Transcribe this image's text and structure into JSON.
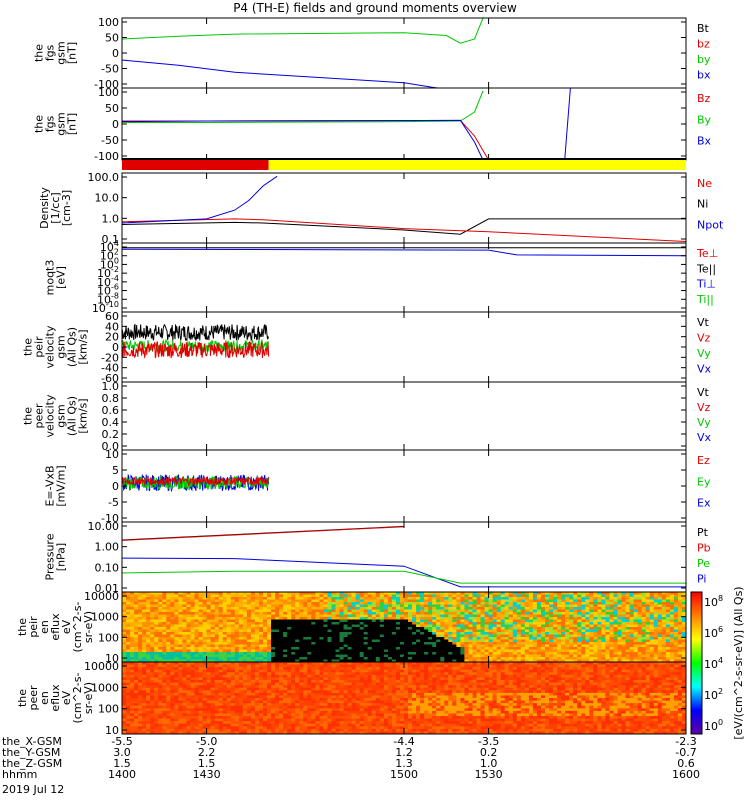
{
  "title": "P4 (TH-E) fields and ground moments overview",
  "colors": {
    "black": "#000000",
    "red": "#e00000",
    "green": "#00c800",
    "blue": "#0000e0",
    "yellow": "#ffff00"
  },
  "chart_data": [
    {
      "type": "line",
      "ylabel": [
        "the",
        "fgs",
        "gsm",
        "[nT]"
      ],
      "yticks": [
        "100",
        "50",
        "0",
        "-50",
        "-100"
      ],
      "ylim": [
        -100,
        100
      ],
      "legend": [
        {
          "name": "Bt",
          "color": "#000000"
        },
        {
          "name": "bz",
          "color": "#e00000"
        },
        {
          "name": "by",
          "color": "#00c800"
        },
        {
          "name": "bx",
          "color": "#0000e0"
        }
      ],
      "series": [
        {
          "name": "by",
          "x": [
            1400,
            1420,
            1440,
            1500,
            1515,
            1520,
            1525,
            1528
          ],
          "y": [
            40,
            48,
            54,
            58,
            50,
            28,
            40,
            100
          ]
        },
        {
          "name": "bx",
          "x": [
            1400,
            1420,
            1440,
            1500,
            1510,
            1512
          ],
          "y": [
            -20,
            -35,
            -55,
            -85,
            -98,
            -100
          ]
        }
      ]
    },
    {
      "type": "line",
      "ylabel": [
        "the",
        "fgs",
        "gsm",
        "[nT]"
      ],
      "yticks": [
        "100",
        "50",
        "0",
        "-50",
        "-100"
      ],
      "ylim": [
        -120,
        120
      ],
      "legend": [
        {
          "name": "Bz",
          "color": "#e00000"
        },
        {
          "name": "By",
          "color": "#00c800"
        },
        {
          "name": "Bx",
          "color": "#0000e0"
        }
      ],
      "series": [
        {
          "name": "By",
          "x": [
            1400,
            1430,
            1500,
            1520,
            1525,
            1528
          ],
          "y": [
            5,
            5,
            8,
            10,
            40,
            110
          ]
        },
        {
          "name": "Bz",
          "x": [
            1400,
            1430,
            1520,
            1525,
            1530
          ],
          "y": [
            10,
            10,
            12,
            -40,
            -120
          ]
        },
        {
          "name": "Bx",
          "x": [
            1400,
            1430,
            1520,
            1525,
            1528,
            1557,
            1559
          ],
          "y": [
            8,
            10,
            12,
            -60,
            -120,
            -120,
            120
          ]
        }
      ]
    },
    {
      "type": "bar_strip",
      "x": [
        1400,
        1452,
        1600
      ],
      "values": [
        "red",
        "yellow"
      ]
    },
    {
      "type": "line",
      "ylabel": [
        "Density",
        "[1/cc]",
        "[cm-3]"
      ],
      "yticks": [
        "100.0",
        "10.0",
        "1.0",
        "0.1"
      ],
      "ylim": [
        0.05,
        300
      ],
      "scale": "log",
      "legend": [
        {
          "name": "Ne",
          "color": "#e00000"
        },
        {
          "name": "Ni",
          "color": "#000000"
        },
        {
          "name": "Npot",
          "color": "#0000e0"
        }
      ],
      "series": [
        {
          "name": "Ni",
          "x": [
            1400,
            1440,
            1450,
            1500,
            1520,
            1530,
            1600
          ],
          "y": [
            0.5,
            0.65,
            0.6,
            0.25,
            0.15,
            1.0,
            1.0
          ]
        },
        {
          "name": "Ne",
          "x": [
            1400,
            1440,
            1450,
            1500,
            1530,
            1600
          ],
          "y": [
            0.7,
            1.0,
            0.9,
            0.3,
            0.2,
            0.06
          ]
        },
        {
          "name": "Npot",
          "x": [
            1400,
            1430,
            1440,
            1445,
            1450,
            1455
          ],
          "y": [
            0.6,
            1.0,
            3,
            10,
            60,
            200
          ]
        }
      ]
    },
    {
      "type": "line",
      "ylabel": [
        "moqt3",
        "[eV]"
      ],
      "yticks": [
        "10^4",
        "10^2",
        "10^0",
        "10^-2",
        "10^-4",
        "10^-6",
        "10^-8",
        "10^-10"
      ],
      "ylim": [
        -10,
        4.5
      ],
      "scale": "log",
      "legend": [
        {
          "name": "Te⊥",
          "color": "#e00000"
        },
        {
          "name": "Te||",
          "color": "#000000"
        },
        {
          "name": "Ti⊥",
          "color": "#0000e0"
        },
        {
          "name": "Ti||",
          "color": "#00c800"
        }
      ],
      "series": [
        {
          "name": "Te||",
          "x": [
            1400,
            1600
          ],
          "y": [
            3.5,
            3.5
          ]
        },
        {
          "name": "Ti⊥",
          "x": [
            1400,
            1530,
            1540,
            1600
          ],
          "y": [
            3.2,
            3.0,
            2.0,
            1.8
          ]
        }
      ]
    },
    {
      "type": "line",
      "ylabel": [
        "the",
        "peir",
        "velocity",
        "gsm",
        "(All Qs)",
        "[km/s]"
      ],
      "yticks": [
        "60",
        "40",
        "20",
        "0",
        "-20",
        "-40",
        "-60"
      ],
      "ylim": [
        -60,
        60
      ],
      "legend": [
        {
          "name": "Vt",
          "color": "#000000"
        },
        {
          "name": "Vz",
          "color": "#e00000"
        },
        {
          "name": "Vy",
          "color": "#00c800"
        },
        {
          "name": "Vx",
          "color": "#0000e0"
        }
      ],
      "series": [
        {
          "name": "Vt",
          "x": [
            1400,
            1452
          ],
          "y": [
            25,
            25
          ],
          "noise": 14
        },
        {
          "name": "Vy",
          "x": [
            1400,
            1452
          ],
          "y": [
            2,
            2
          ],
          "noise": 10
        },
        {
          "name": "Vz",
          "x": [
            1400,
            1452
          ],
          "y": [
            -5,
            -5
          ],
          "noise": 14
        }
      ]
    },
    {
      "type": "line",
      "ylabel": [
        "the",
        "peer",
        "velocity",
        "gsm",
        "(All Qs)",
        "[km/s]"
      ],
      "yticks": [
        "1.0",
        "0.8",
        "0.6",
        "0.4",
        "0.2",
        "0.0"
      ],
      "ylim": [
        0,
        1
      ],
      "legend": [
        {
          "name": "Vt",
          "color": "#000000"
        },
        {
          "name": "Vz",
          "color": "#e00000"
        },
        {
          "name": "Vy",
          "color": "#00c800"
        },
        {
          "name": "Vx",
          "color": "#0000e0"
        }
      ],
      "series": []
    },
    {
      "type": "line",
      "ylabel": [
        "E=-VxB",
        "[mV/m]"
      ],
      "yticks": [
        "10",
        "5",
        "0",
        "-5",
        "-10"
      ],
      "ylim": [
        -12,
        10
      ],
      "legend": [
        {
          "name": "Ez",
          "color": "#e00000"
        },
        {
          "name": "Ey",
          "color": "#00c800"
        },
        {
          "name": "Ex",
          "color": "#0000e0"
        }
      ],
      "series": [
        {
          "name": "Ex",
          "x": [
            1400,
            1452
          ],
          "y": [
            0,
            0
          ],
          "noise": 2.5
        },
        {
          "name": "Ey",
          "x": [
            1400,
            1452
          ],
          "y": [
            0,
            0
          ],
          "noise": 2
        },
        {
          "name": "Ez",
          "x": [
            1400,
            1452
          ],
          "y": [
            0.5,
            0.5
          ],
          "noise": 1.2
        }
      ]
    },
    {
      "type": "line",
      "ylabel": [
        "Pressure",
        "[nPa]"
      ],
      "yticks": [
        "10.00",
        "1.00",
        "0.10",
        "0.01"
      ],
      "ylim": [
        0.003,
        40
      ],
      "scale": "log",
      "legend": [
        {
          "name": "Pt",
          "color": "#000000"
        },
        {
          "name": "Pb",
          "color": "#e00000"
        },
        {
          "name": "Pe",
          "color": "#00c800"
        },
        {
          "name": "Pi",
          "color": "#0000e0"
        }
      ],
      "series": [
        {
          "name": "Pt",
          "x": [
            1400,
            1500
          ],
          "y": [
            3.5,
            22
          ]
        },
        {
          "name": "Pb",
          "x": [
            1400,
            1500
          ],
          "y": [
            3.3,
            21
          ]
        },
        {
          "name": "Pi",
          "x": [
            1400,
            1440,
            1500,
            1520,
            1600
          ],
          "y": [
            0.3,
            0.28,
            0.1,
            0.006,
            0.006
          ]
        },
        {
          "name": "Pe",
          "x": [
            1400,
            1440,
            1500,
            1520,
            1600
          ],
          "y": [
            0.04,
            0.05,
            0.05,
            0.01,
            0.01
          ]
        }
      ]
    },
    {
      "type": "heatmap",
      "ylabel": [
        "the",
        "peir",
        "en",
        "eflux",
        "eV",
        "(cm^2-s-",
        "sr-eV)"
      ],
      "yticks": [
        "10000",
        "1000",
        "100",
        "10"
      ],
      "ylim": [
        5,
        20000
      ],
      "scale": "log"
    },
    {
      "type": "heatmap",
      "ylabel": [
        "the",
        "peer",
        "en",
        "eflux",
        "eV",
        "(cm^2-s-",
        "sr-eV)"
      ],
      "yticks": [
        "10000",
        "1000",
        "100",
        "10"
      ],
      "ylim": [
        5,
        20000
      ],
      "scale": "log"
    }
  ],
  "colorbar": {
    "label": "[eV/(cm^2-s-sr-eV)] (All Qs)",
    "ticks": [
      "10^8",
      "10^6",
      "10^4",
      "10^2",
      "10^0"
    ]
  },
  "xaxis": {
    "range": [
      1400,
      1600
    ],
    "tick_x": [
      1400,
      1430,
      1500,
      1530,
      1600
    ],
    "rows": [
      {
        "label": "the_X-GSM",
        "values": [
          "-5.5",
          "-5.0",
          "-4.4",
          "-3.5",
          "-2.3"
        ]
      },
      {
        "label": "the_Y-GSM",
        "values": [
          "3.0",
          "2.2",
          "1.2",
          "0.2",
          "-0.7"
        ]
      },
      {
        "label": "the_Z-GSM",
        "values": [
          "1.5",
          "1.5",
          "1.3",
          "1.0",
          "0.6"
        ]
      },
      {
        "label": "hhmm",
        "values": [
          "1400",
          "1430",
          "1500",
          "1530",
          "1600"
        ]
      }
    ],
    "date": "2019 Jul 12"
  }
}
